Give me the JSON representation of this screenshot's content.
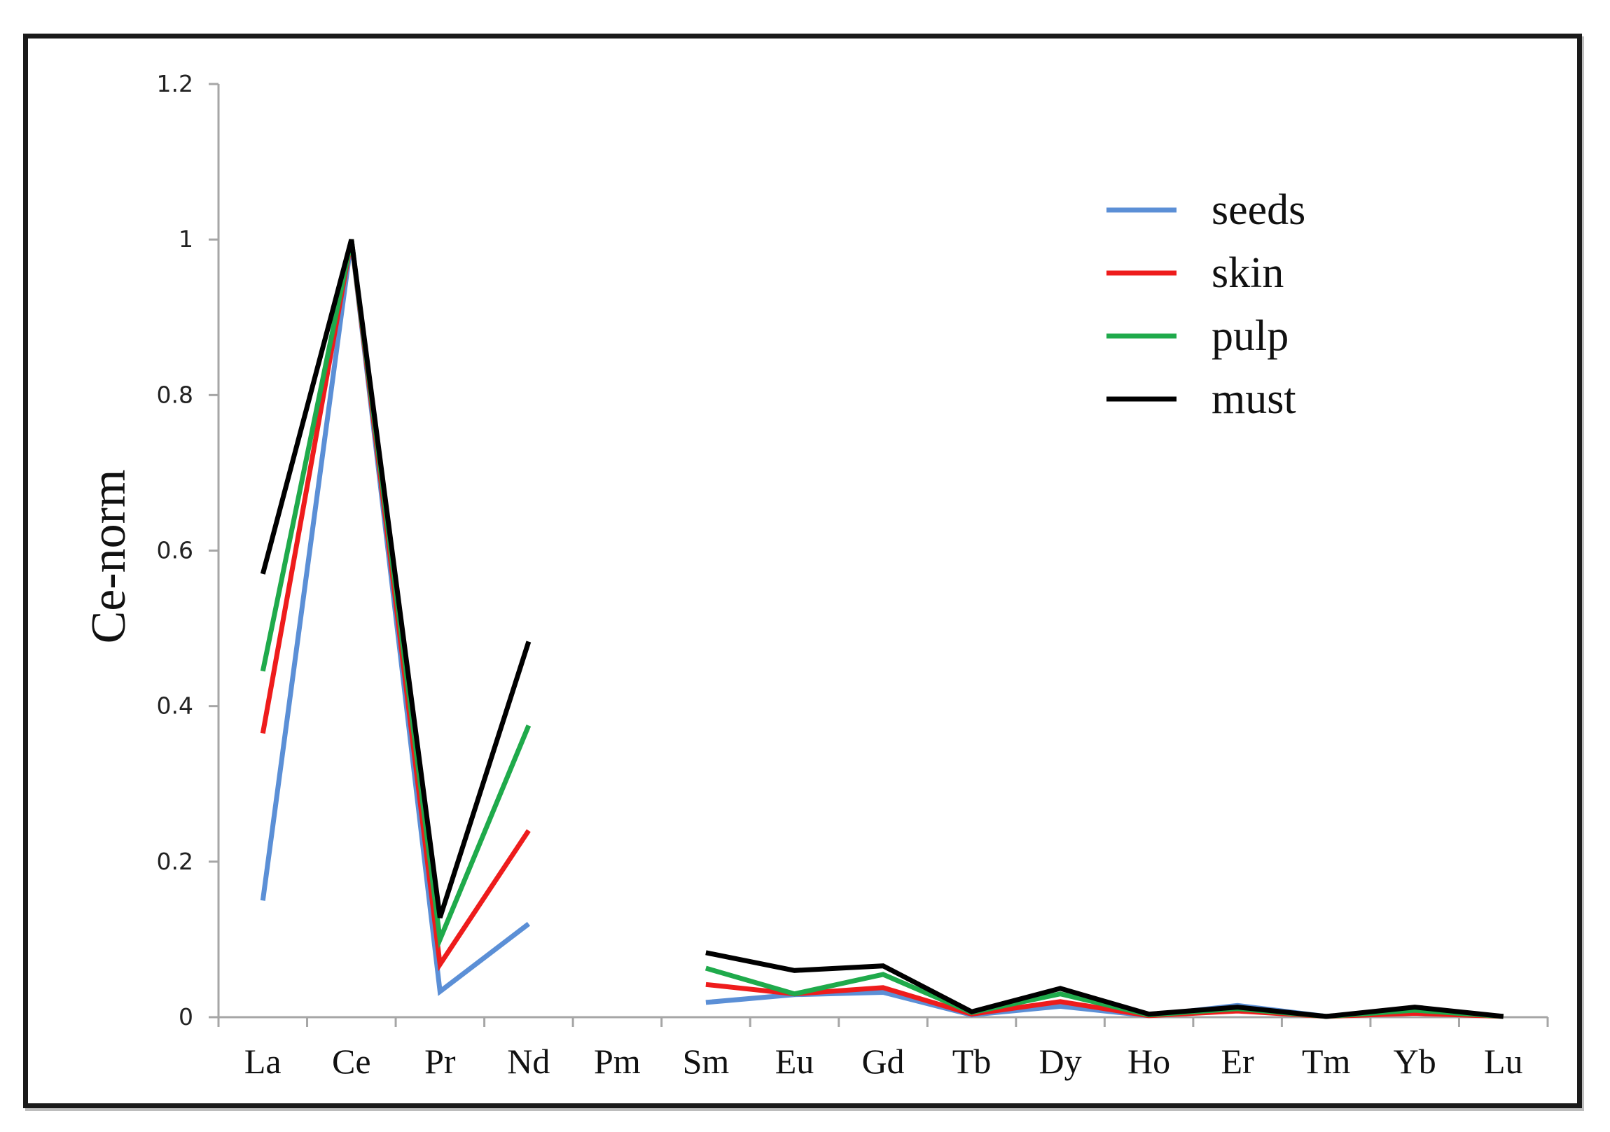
{
  "chart_data": {
    "type": "line",
    "title": "",
    "xlabel": "",
    "ylabel": "Ce-norm",
    "ylim": [
      0,
      1.2
    ],
    "yticks": [
      "0",
      "0.2",
      "0.4",
      "0.6",
      "0.8",
      "1",
      "1.2"
    ],
    "yticks_values": [
      0,
      0.2,
      0.4,
      0.6,
      0.8,
      1.0,
      1.2
    ],
    "categories": [
      "La",
      "Ce",
      "Pr",
      "Nd",
      "Pm",
      "Sm",
      "Eu",
      "Gd",
      "Tb",
      "Dy",
      "Ho",
      "Er",
      "Tm",
      "Yb",
      "Lu"
    ],
    "legend_position": "top-right",
    "series": [
      {
        "name": "seeds",
        "color": "#5b8fd6",
        "values": [
          0.15,
          1.0,
          0.033,
          0.12,
          null,
          0.019,
          0.029,
          0.032,
          0.003,
          0.014,
          0.002,
          0.015,
          0.001,
          0.007,
          0.001
        ]
      },
      {
        "name": "skin",
        "color": "#ee1c1c",
        "values": [
          0.365,
          1.0,
          0.068,
          0.24,
          null,
          0.042,
          0.03,
          0.038,
          0.004,
          0.02,
          0.002,
          0.008,
          0.001,
          0.005,
          0.001
        ]
      },
      {
        "name": "pulp",
        "color": "#1faa4b",
        "values": [
          0.445,
          1.0,
          0.1,
          0.375,
          null,
          0.063,
          0.03,
          0.055,
          0.006,
          0.03,
          0.003,
          0.011,
          0.001,
          0.009,
          0.001
        ]
      },
      {
        "name": "must",
        "color": "#000000",
        "values": [
          0.57,
          1.0,
          0.128,
          0.483,
          null,
          0.083,
          0.06,
          0.066,
          0.007,
          0.037,
          0.004,
          0.013,
          0.001,
          0.013,
          0.001
        ]
      }
    ]
  }
}
